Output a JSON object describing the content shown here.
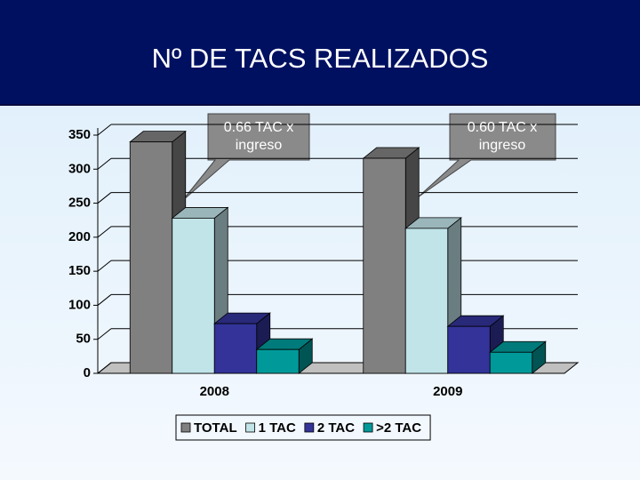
{
  "chart_data": {
    "type": "bar",
    "title": "Nº DE TACS REALIZADOS",
    "categories": [
      "2008",
      "2009"
    ],
    "series": [
      {
        "name": "TOTAL",
        "color": "#808080",
        "values": [
          340,
          316
        ]
      },
      {
        "name": "1 TAC",
        "color": "#c0e4e8",
        "values": [
          228,
          213
        ]
      },
      {
        "name": "2 TAC",
        "color": "#333399",
        "values": [
          73,
          69
        ]
      },
      {
        "name": ">2 TAC",
        "color": "#009999",
        "values": [
          35,
          31
        ]
      }
    ],
    "ylim": [
      0,
      350
    ],
    "yticks": [
      0,
      50,
      100,
      150,
      200,
      250,
      300,
      350
    ],
    "grid": true,
    "legend": "bottom",
    "annotations": [
      "0.66 TAC x ingreso",
      "0.60 TAC x ingreso"
    ]
  }
}
